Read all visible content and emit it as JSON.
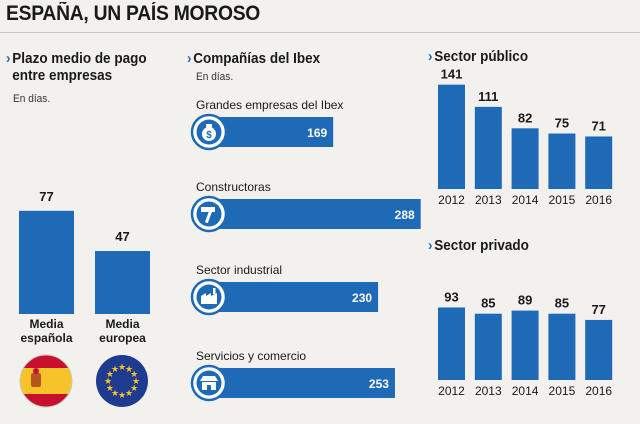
{
  "page": {
    "title": "ESPAÑA, UN PAÍS MOROSO"
  },
  "colors": {
    "bar": "#1e6ab7",
    "background": "#f2f1ed",
    "text": "#1a1a1a"
  },
  "chart_data": [
    {
      "type": "bar",
      "title": "Plazo medio de pago entre empresas",
      "title_lines": [
        "Plazo medio de pago",
        "entre empresas"
      ],
      "subtitle": "En días.",
      "categories": [
        "Media española",
        "Media europea"
      ],
      "category_lines": [
        [
          "Media",
          "española"
        ],
        [
          "Media",
          "europea"
        ]
      ],
      "values": [
        77,
        47
      ],
      "icons": [
        "spain-flag-icon",
        "eu-flag-icon"
      ]
    },
    {
      "type": "bar",
      "orientation": "horizontal",
      "title": "Compañías del Ibex",
      "subtitle": "En días.",
      "categories": [
        "Grandes empresas del Ibex",
        "Constructoras",
        "Sector industrial",
        "Servicios y comercio"
      ],
      "values": [
        169,
        288,
        230,
        253
      ],
      "icons": [
        "money-bag-icon",
        "hammer-icon",
        "factory-icon",
        "shop-icon"
      ]
    },
    {
      "type": "bar",
      "title": "Sector público",
      "categories": [
        "2012",
        "2013",
        "2014",
        "2015",
        "2016"
      ],
      "values": [
        141,
        111,
        82,
        75,
        71
      ]
    },
    {
      "type": "bar",
      "title": "Sector privado",
      "categories": [
        "2012",
        "2013",
        "2014",
        "2015",
        "2016"
      ],
      "values": [
        93,
        85,
        89,
        85,
        77
      ]
    }
  ]
}
